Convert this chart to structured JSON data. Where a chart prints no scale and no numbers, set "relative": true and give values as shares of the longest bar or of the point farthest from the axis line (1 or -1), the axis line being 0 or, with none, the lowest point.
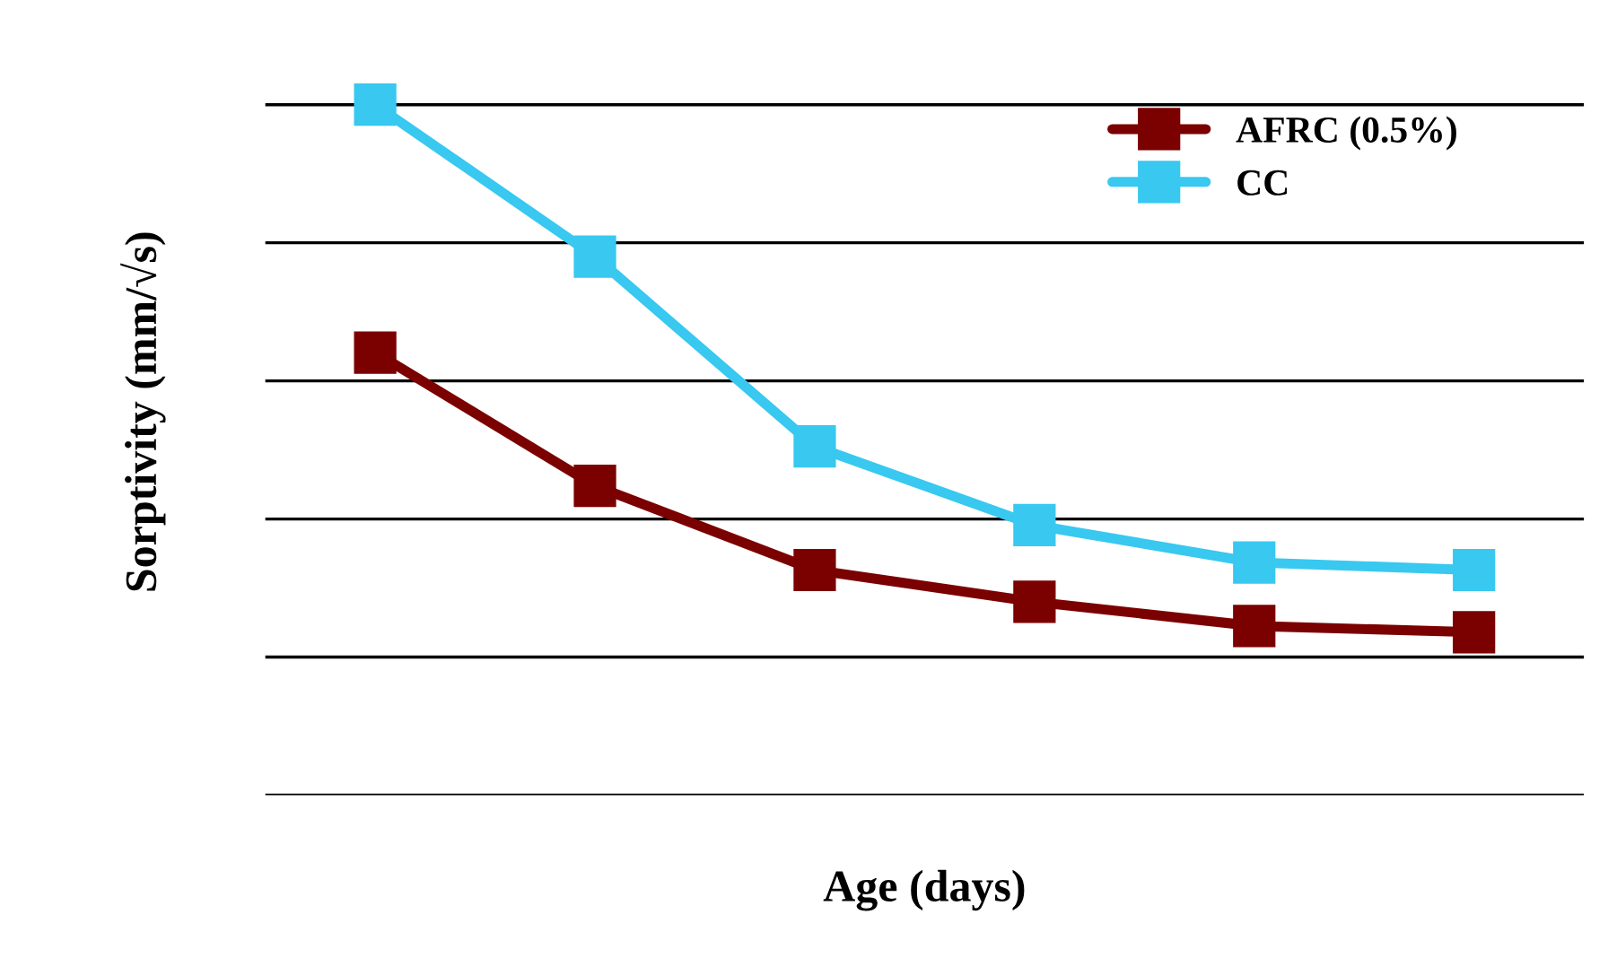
{
  "chart_data": {
    "type": "line",
    "xlabel": "Age (days)",
    "ylabel": "Sorptivity (mm/√s)",
    "relative": true,
    "categories": [
      null,
      null,
      null,
      null,
      null,
      null
    ],
    "series": [
      {
        "name": "AFRC (0.5%)",
        "color": "#7b0000",
        "values": [
          0.641,
          0.448,
          0.326,
          0.28,
          0.245,
          0.236
        ]
      },
      {
        "name": "CC",
        "color": "#38c8f0",
        "values": [
          1.0,
          0.78,
          0.505,
          0.391,
          0.337,
          0.326
        ]
      }
    ],
    "marker": "square",
    "line_style": "solid",
    "grid": "y",
    "legend": "top right",
    "tick_labels": false
  }
}
